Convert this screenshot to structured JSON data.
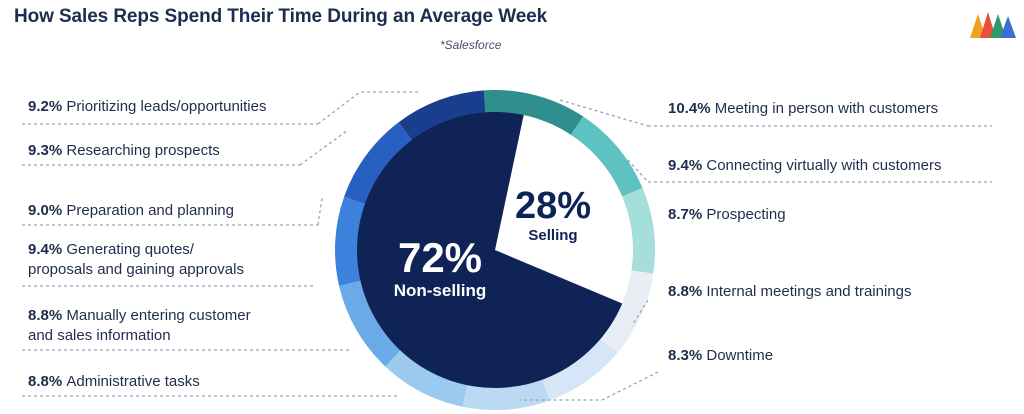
{
  "title": "How Sales Reps Spend Their Time During an Average Week",
  "source": "*Salesforce",
  "logo_icon": "brand-mountains-icon",
  "chart_data": {
    "type": "pie",
    "title": "How Sales Reps Spend Their Time During an Average Week",
    "inner": [
      {
        "label": "Non-selling",
        "value": 72,
        "display": "72%",
        "color": "#0f2356"
      },
      {
        "label": "Selling",
        "value": 28,
        "display": "28%",
        "color": "#ffffff"
      }
    ],
    "outer": [
      {
        "pct": "10.4%",
        "label": "Meeting in person with customers",
        "value": 10.4,
        "side": "right",
        "color": "#2f8f8f"
      },
      {
        "pct": "9.4%",
        "label": "Connecting virtually with customers",
        "value": 9.4,
        "side": "right",
        "color": "#5ec2c2"
      },
      {
        "pct": "8.7%",
        "label": "Prospecting",
        "value": 8.7,
        "side": "right",
        "color": "#a6dedc"
      },
      {
        "pct": "8.8%",
        "label": "Internal meetings and trainings",
        "value": 8.8,
        "side": "right",
        "color": "#e9eef4"
      },
      {
        "pct": "8.3%",
        "label": "Downtime",
        "value": 8.3,
        "side": "right",
        "color": "#d6e6f6"
      },
      {
        "pct": "8.8%",
        "label": "Administrative tasks",
        "value": 8.8,
        "side": "left",
        "color": "#bcd9f3"
      },
      {
        "pct": "8.8%",
        "label": "Manually entering customer and sales information",
        "lines": [
          "Manually entering customer",
          "and sales information"
        ],
        "value": 8.8,
        "side": "left",
        "color": "#9ccaef"
      },
      {
        "pct": "9.4%",
        "label": "Generating quotes/ proposals and gaining approvals",
        "lines": [
          "Generating quotes/",
          "proposals and gaining approvals"
        ],
        "value": 9.4,
        "side": "left",
        "color": "#6aaae8"
      },
      {
        "pct": "9.0%",
        "label": "Preparation and planning",
        "value": 9.0,
        "side": "left",
        "color": "#3c82dc"
      },
      {
        "pct": "9.3%",
        "label": "Researching prospects",
        "value": 9.3,
        "side": "left",
        "color": "#2860c2"
      },
      {
        "pct": "9.2%",
        "label": "Prioritizing leads/opportunities",
        "value": 9.2,
        "side": "left",
        "color": "#1a3e8e"
      }
    ]
  }
}
